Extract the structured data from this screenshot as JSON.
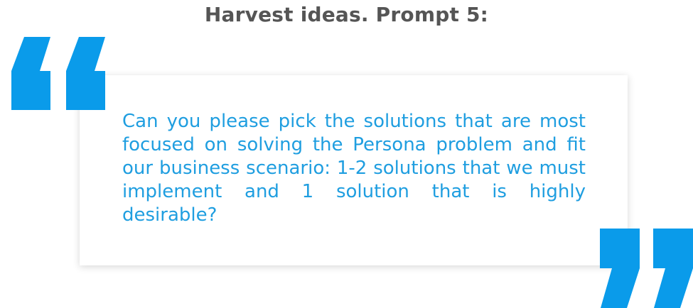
{
  "title": "Harvest ideas. Prompt 5:",
  "quote": {
    "text": "Can you please pick the solutions that are most focused on solving the Persona problem and fit our business scenario: 1-2 solutions that we must implement and 1 solution that is highly desirable?"
  },
  "icons": {
    "open": "open-quote-icon",
    "close": "close-quote-icon"
  },
  "colors": {
    "accent": "#0a9bea",
    "text_blue": "#1f9ee0",
    "title_gray": "#555555"
  }
}
